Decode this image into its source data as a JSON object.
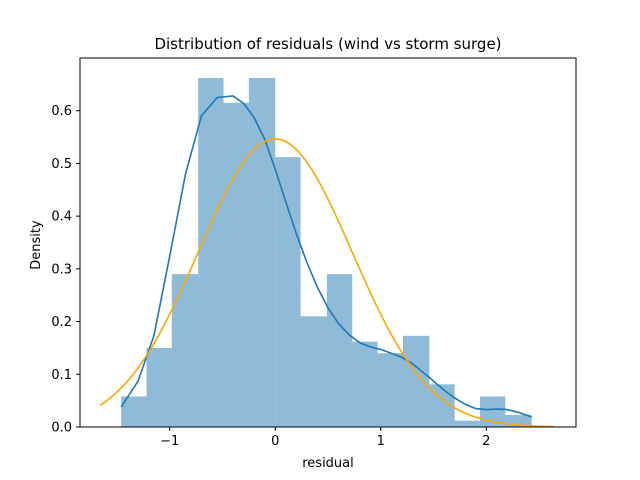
{
  "chart_data": {
    "type": "bar",
    "title": "Distribution of residuals (wind vs storm surge)",
    "xlabel": "residual",
    "ylabel": "Density",
    "xlim": [
      -1.85,
      2.85
    ],
    "ylim": [
      0,
      0.7
    ],
    "xticks": [
      -1,
      0,
      1,
      2
    ],
    "yticks": [
      0.0,
      0.1,
      0.2,
      0.3,
      0.4,
      0.5,
      0.6
    ],
    "grid": false,
    "histogram": {
      "bin_edges": [
        -1.46,
        -1.22,
        -0.98,
        -0.73,
        -0.49,
        -0.25,
        0.0,
        0.24,
        0.49,
        0.73,
        0.97,
        1.21,
        1.46,
        1.7,
        1.94,
        2.18,
        2.43
      ],
      "density": [
        0.058,
        0.15,
        0.29,
        0.662,
        0.615,
        0.662,
        0.512,
        0.21,
        0.29,
        0.162,
        0.14,
        0.173,
        0.081,
        0.012,
        0.058,
        0.023
      ],
      "color": "#1f77b4",
      "alpha": 0.5
    },
    "series": [
      {
        "kind": "kde",
        "color": "#1f77b4",
        "x": [
          -1.46,
          -1.3,
          -1.15,
          -1.0,
          -0.85,
          -0.7,
          -0.55,
          -0.4,
          -0.3,
          -0.2,
          -0.1,
          0.0,
          0.1,
          0.2,
          0.3,
          0.4,
          0.5,
          0.6,
          0.7,
          0.8,
          0.9,
          1.0,
          1.1,
          1.2,
          1.3,
          1.4,
          1.5,
          1.6,
          1.7,
          1.8,
          1.9,
          2.0,
          2.1,
          2.2,
          2.3,
          2.43
        ],
        "y": [
          0.038,
          0.087,
          0.173,
          0.324,
          0.48,
          0.59,
          0.625,
          0.628,
          0.614,
          0.587,
          0.546,
          0.489,
          0.427,
          0.367,
          0.312,
          0.265,
          0.226,
          0.196,
          0.175,
          0.16,
          0.152,
          0.147,
          0.14,
          0.132,
          0.12,
          0.104,
          0.087,
          0.07,
          0.055,
          0.043,
          0.035,
          0.033,
          0.034,
          0.033,
          0.028,
          0.019
        ]
      },
      {
        "kind": "normal-fit",
        "color": "#ffa500",
        "mean": 0.0,
        "std": 0.73,
        "x_range": [
          -1.66,
          2.64
        ]
      }
    ]
  }
}
